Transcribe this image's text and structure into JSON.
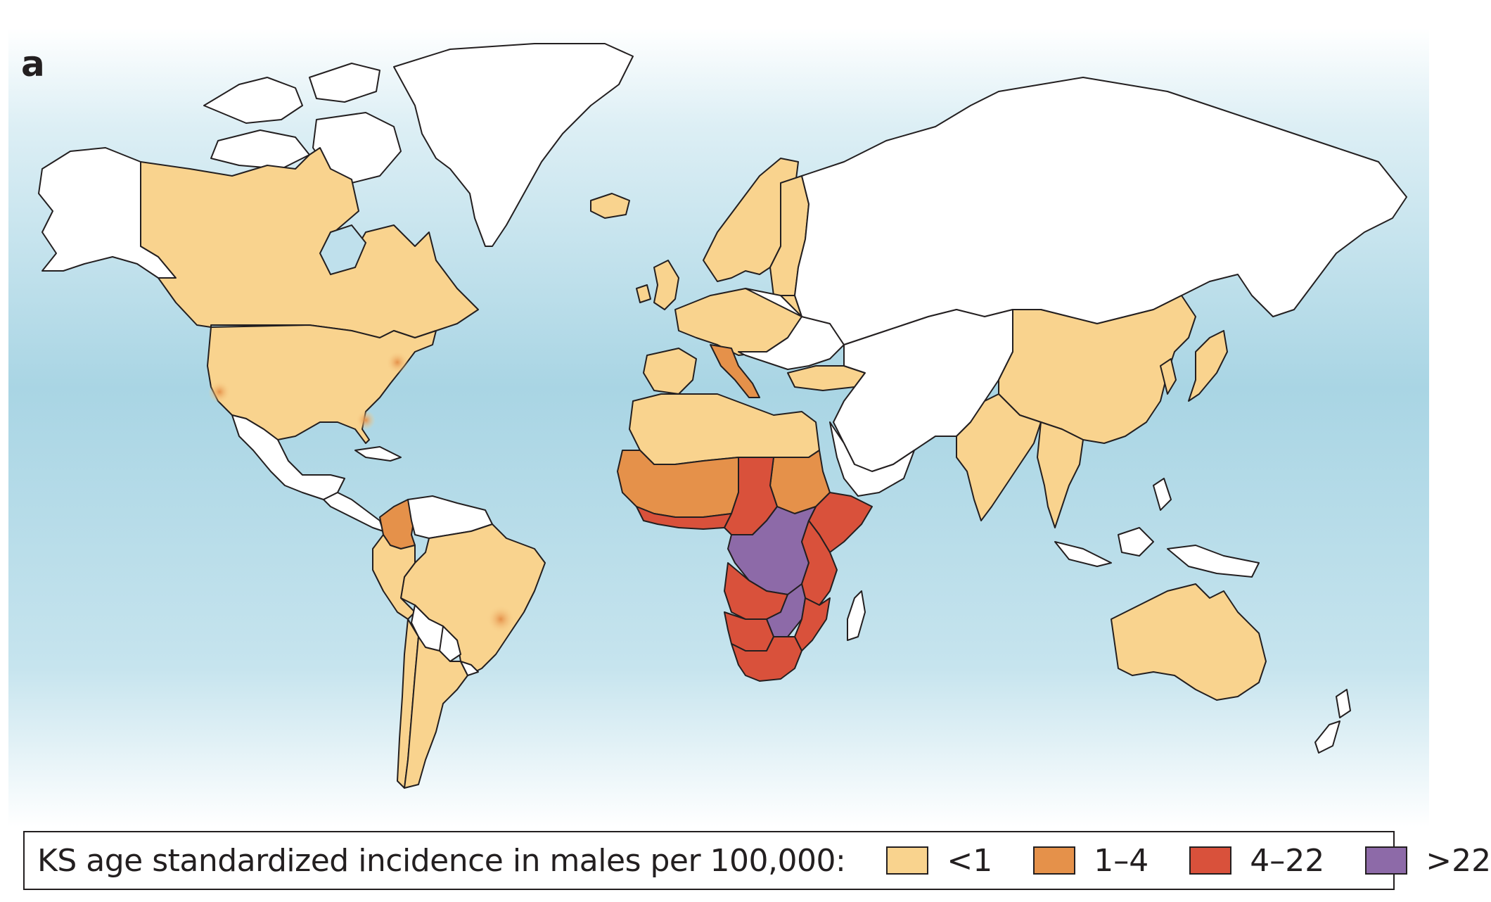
{
  "panel_label": "a",
  "legend": {
    "title": "KS age standardized incidence in males per 100,000:",
    "items": [
      {
        "label": "<1",
        "color": "#f9d38e"
      },
      {
        "label": "1–4",
        "color": "#e5914a"
      },
      {
        "label": "4–22",
        "color": "#d9513b"
      },
      {
        "label": ">22",
        "color": "#8d6aa8"
      }
    ]
  },
  "colors": {
    "ocean_top": "#ffffff",
    "ocean_mid": "#a9d5e4",
    "ocean_bottom": "#ffffff",
    "no_data": "#ffffff",
    "outline": "#231f20"
  }
}
